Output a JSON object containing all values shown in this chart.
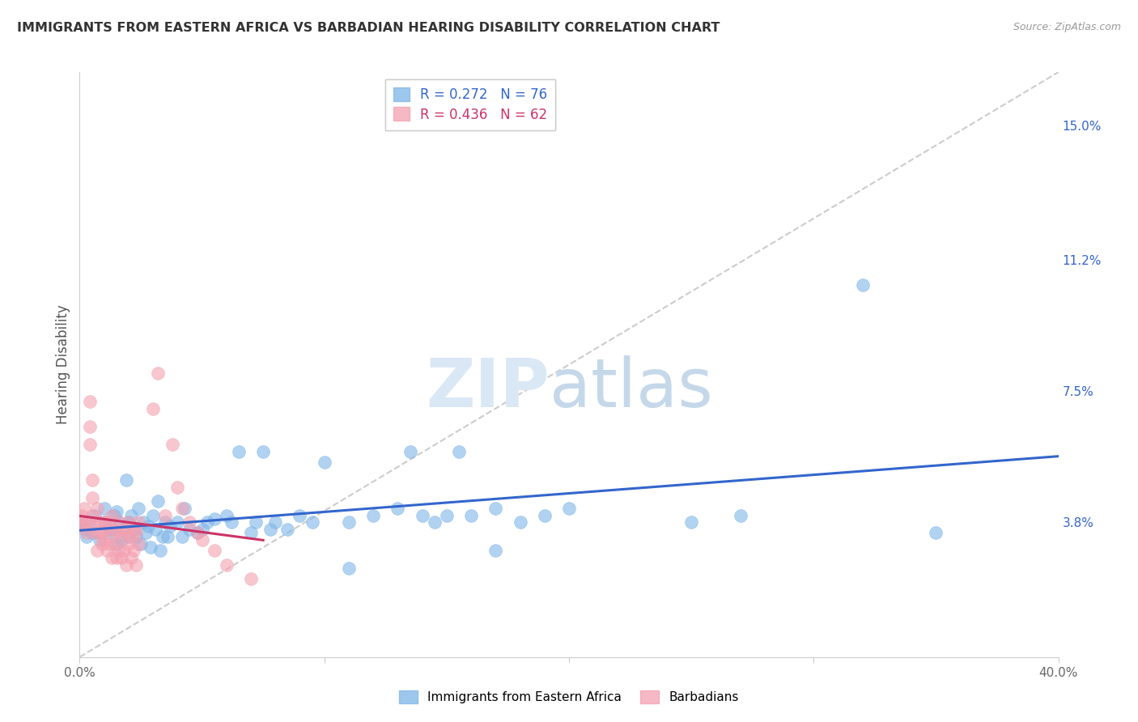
{
  "title": "IMMIGRANTS FROM EASTERN AFRICA VS BARBADIAN HEARING DISABILITY CORRELATION CHART",
  "source": "Source: ZipAtlas.com",
  "ylabel": "Hearing Disability",
  "xlim": [
    0.0,
    0.4
  ],
  "ylim": [
    0.0,
    0.165
  ],
  "yticks_right": [
    0.038,
    0.075,
    0.112,
    0.15
  ],
  "yticklabels_right": [
    "3.8%",
    "7.5%",
    "11.2%",
    "15.0%"
  ],
  "legend_blue_label": "Immigrants from Eastern Africa",
  "legend_pink_label": "Barbadians",
  "legend_blue_r": "R = 0.272",
  "legend_blue_n": "N = 76",
  "legend_pink_r": "R = 0.436",
  "legend_pink_n": "N = 62",
  "blue_color": "#7EB5E8",
  "pink_color": "#F4A0B0",
  "trendline_blue_color": "#3366CC",
  "trendline_pink_color": "#CC3366",
  "trendline_dashed_color": "#CCCCCC",
  "background_color": "#FFFFFF",
  "grid_color": "#E0E0E0",
  "blue_scatter": [
    [
      0.001,
      0.038
    ],
    [
      0.002,
      0.036
    ],
    [
      0.003,
      0.034
    ],
    [
      0.004,
      0.037
    ],
    [
      0.005,
      0.035
    ],
    [
      0.006,
      0.04
    ],
    [
      0.008,
      0.033
    ],
    [
      0.01,
      0.038
    ],
    [
      0.01,
      0.042
    ],
    [
      0.012,
      0.035
    ],
    [
      0.013,
      0.036
    ],
    [
      0.014,
      0.04
    ],
    [
      0.015,
      0.032
    ],
    [
      0.015,
      0.041
    ],
    [
      0.016,
      0.038
    ],
    [
      0.017,
      0.033
    ],
    [
      0.018,
      0.036
    ],
    [
      0.019,
      0.05
    ],
    [
      0.02,
      0.034
    ],
    [
      0.02,
      0.038
    ],
    [
      0.021,
      0.04
    ],
    [
      0.022,
      0.036
    ],
    [
      0.023,
      0.034
    ],
    [
      0.024,
      0.042
    ],
    [
      0.025,
      0.032
    ],
    [
      0.026,
      0.038
    ],
    [
      0.027,
      0.035
    ],
    [
      0.028,
      0.037
    ],
    [
      0.029,
      0.031
    ],
    [
      0.03,
      0.04
    ],
    [
      0.031,
      0.036
    ],
    [
      0.032,
      0.044
    ],
    [
      0.033,
      0.03
    ],
    [
      0.034,
      0.034
    ],
    [
      0.035,
      0.038
    ],
    [
      0.036,
      0.034
    ],
    [
      0.037,
      0.037
    ],
    [
      0.04,
      0.038
    ],
    [
      0.042,
      0.034
    ],
    [
      0.043,
      0.042
    ],
    [
      0.045,
      0.036
    ],
    [
      0.048,
      0.035
    ],
    [
      0.05,
      0.036
    ],
    [
      0.052,
      0.038
    ],
    [
      0.055,
      0.039
    ],
    [
      0.06,
      0.04
    ],
    [
      0.062,
      0.038
    ],
    [
      0.065,
      0.058
    ],
    [
      0.07,
      0.035
    ],
    [
      0.072,
      0.038
    ],
    [
      0.075,
      0.058
    ],
    [
      0.078,
      0.036
    ],
    [
      0.08,
      0.038
    ],
    [
      0.085,
      0.036
    ],
    [
      0.09,
      0.04
    ],
    [
      0.095,
      0.038
    ],
    [
      0.1,
      0.055
    ],
    [
      0.11,
      0.038
    ],
    [
      0.12,
      0.04
    ],
    [
      0.13,
      0.042
    ],
    [
      0.135,
      0.058
    ],
    [
      0.14,
      0.04
    ],
    [
      0.145,
      0.038
    ],
    [
      0.15,
      0.04
    ],
    [
      0.155,
      0.058
    ],
    [
      0.16,
      0.04
    ],
    [
      0.17,
      0.042
    ],
    [
      0.18,
      0.038
    ],
    [
      0.19,
      0.04
    ],
    [
      0.2,
      0.042
    ],
    [
      0.11,
      0.025
    ],
    [
      0.17,
      0.03
    ],
    [
      0.25,
      0.038
    ],
    [
      0.27,
      0.04
    ],
    [
      0.32,
      0.105
    ],
    [
      0.35,
      0.035
    ]
  ],
  "pink_scatter": [
    [
      0.001,
      0.038
    ],
    [
      0.001,
      0.04
    ],
    [
      0.002,
      0.037
    ],
    [
      0.002,
      0.042
    ],
    [
      0.003,
      0.035
    ],
    [
      0.003,
      0.038
    ],
    [
      0.004,
      0.06
    ],
    [
      0.004,
      0.065
    ],
    [
      0.004,
      0.072
    ],
    [
      0.005,
      0.04
    ],
    [
      0.005,
      0.045
    ],
    [
      0.005,
      0.05
    ],
    [
      0.006,
      0.038
    ],
    [
      0.006,
      0.035
    ],
    [
      0.007,
      0.042
    ],
    [
      0.007,
      0.03
    ],
    [
      0.008,
      0.035
    ],
    [
      0.008,
      0.038
    ],
    [
      0.009,
      0.032
    ],
    [
      0.009,
      0.035
    ],
    [
      0.01,
      0.033
    ],
    [
      0.01,
      0.038
    ],
    [
      0.011,
      0.036
    ],
    [
      0.011,
      0.03
    ],
    [
      0.012,
      0.038
    ],
    [
      0.012,
      0.032
    ],
    [
      0.013,
      0.04
    ],
    [
      0.013,
      0.028
    ],
    [
      0.014,
      0.036
    ],
    [
      0.014,
      0.032
    ],
    [
      0.015,
      0.035
    ],
    [
      0.015,
      0.028
    ],
    [
      0.016,
      0.038
    ],
    [
      0.016,
      0.03
    ],
    [
      0.017,
      0.034
    ],
    [
      0.017,
      0.028
    ],
    [
      0.018,
      0.036
    ],
    [
      0.018,
      0.03
    ],
    [
      0.019,
      0.035
    ],
    [
      0.019,
      0.026
    ],
    [
      0.02,
      0.038
    ],
    [
      0.02,
      0.032
    ],
    [
      0.021,
      0.034
    ],
    [
      0.021,
      0.028
    ],
    [
      0.022,
      0.036
    ],
    [
      0.022,
      0.03
    ],
    [
      0.023,
      0.035
    ],
    [
      0.023,
      0.026
    ],
    [
      0.024,
      0.038
    ],
    [
      0.024,
      0.032
    ],
    [
      0.03,
      0.07
    ],
    [
      0.032,
      0.08
    ],
    [
      0.035,
      0.04
    ],
    [
      0.038,
      0.06
    ],
    [
      0.04,
      0.048
    ],
    [
      0.042,
      0.042
    ],
    [
      0.045,
      0.038
    ],
    [
      0.048,
      0.035
    ],
    [
      0.05,
      0.033
    ],
    [
      0.055,
      0.03
    ],
    [
      0.06,
      0.026
    ],
    [
      0.07,
      0.022
    ]
  ]
}
